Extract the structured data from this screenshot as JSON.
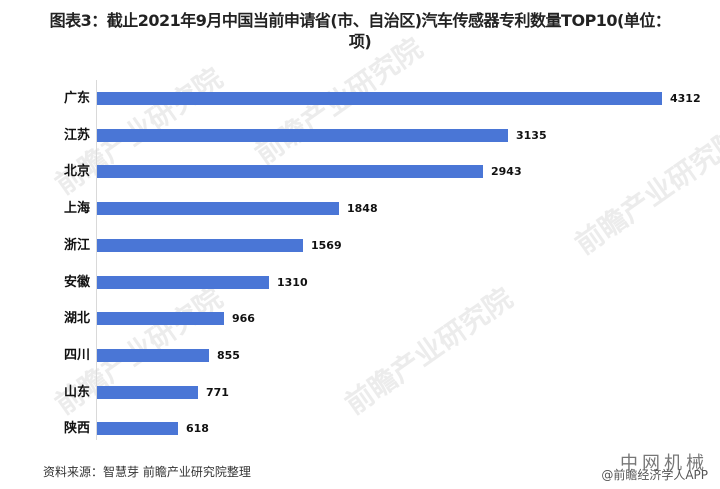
{
  "title": "图表3：截止2021年9月中国当前申请省(市、自治区)汽车传感器专利数量TOP10(单位：项)",
  "source": "资料来源：智慧芽 前瞻产业研究院整理",
  "watermark": {
    "brand": "前瞻产业研究院",
    "corner_top": "中网机械",
    "corner_bottom": "@前瞻经济学人APP"
  },
  "colors": {
    "bar": "#4a76d6",
    "axis": "#d9d9d9"
  },
  "chart_data": {
    "type": "bar",
    "orientation": "horizontal",
    "title": "图表3：截止2021年9月中国当前申请省(市、自治区)汽车传感器专利数量TOP10(单位：项)",
    "xlabel": "",
    "ylabel": "",
    "unit": "项",
    "categories": [
      "广东",
      "江苏",
      "北京",
      "上海",
      "浙江",
      "安徽",
      "湖北",
      "四川",
      "山东",
      "陕西"
    ],
    "values": [
      4312,
      3135,
      2943,
      1848,
      1569,
      1310,
      966,
      855,
      771,
      618
    ],
    "data_labels": true,
    "grid": false,
    "legend": null,
    "xlim": [
      0,
      4312
    ]
  }
}
